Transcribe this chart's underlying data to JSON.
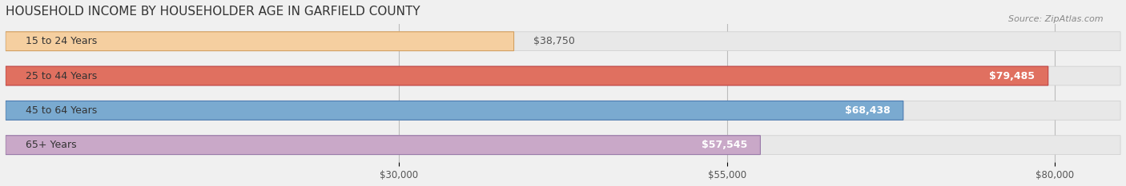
{
  "title": "HOUSEHOLD INCOME BY HOUSEHOLDER AGE IN GARFIELD COUNTY",
  "source": "Source: ZipAtlas.com",
  "categories": [
    "15 to 24 Years",
    "25 to 44 Years",
    "45 to 64 Years",
    "65+ Years"
  ],
  "values": [
    38750,
    79485,
    68438,
    57545
  ],
  "bar_colors": [
    "#f5cfa0",
    "#e07060",
    "#7aaad0",
    "#c9a8c8"
  ],
  "bar_edge_colors": [
    "#d4a060",
    "#c04040",
    "#4a7ab0",
    "#9878a8"
  ],
  "value_labels": [
    "$38,750",
    "$79,485",
    "$68,438",
    "$57,545"
  ],
  "x_ticks": [
    30000,
    55000,
    80000
  ],
  "x_tick_labels": [
    "$30,000",
    "$55,000",
    "$80,000"
  ],
  "xlim": [
    0,
    85000
  ],
  "background_color": "#f0f0f0",
  "bar_background_color": "#e8e8e8",
  "title_fontsize": 11,
  "label_fontsize": 9,
  "value_fontsize": 9,
  "tick_fontsize": 8.5
}
